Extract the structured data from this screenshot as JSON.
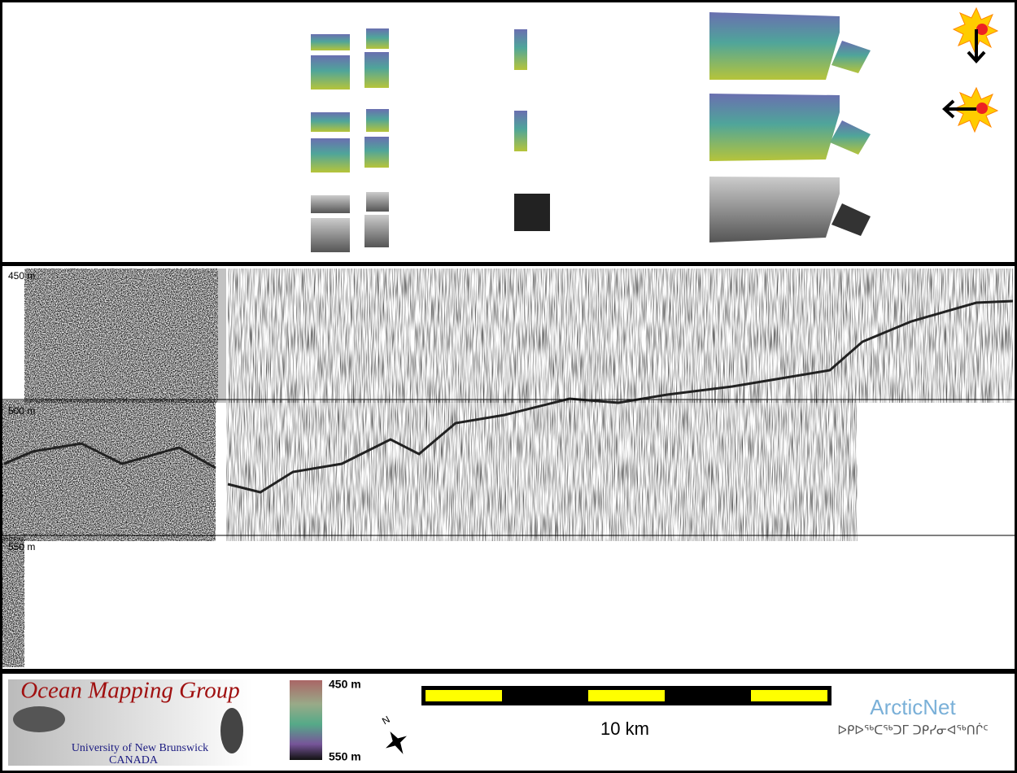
{
  "profile": {
    "depth_labels": [
      "450 m",
      "500 m",
      "550 m"
    ]
  },
  "footer": {
    "logo": {
      "title": "Ocean Mapping Group",
      "line1": "University of New Brunswick",
      "line2": "CANADA"
    },
    "colorbar": {
      "top": "450 m",
      "bottom": "550 m"
    },
    "north": "N",
    "scale_label": "10 km",
    "partner": {
      "name": "ArcticNet",
      "syllabics": "ᐅᑭᐅᖅᑕᖅᑐᒥ ᑐᑭᓯᓂᐊᖅᑎᒌᑦ"
    }
  }
}
